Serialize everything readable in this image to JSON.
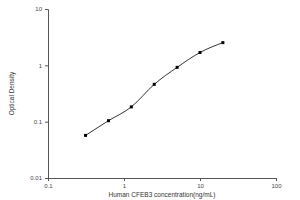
{
  "chart_data": {
    "type": "line",
    "x_label": "Human CFEB3 concentration(ng/mL)",
    "y_label": "Optical Density",
    "x": [
      0.312,
      0.625,
      1.25,
      2.5,
      5,
      10,
      20
    ],
    "values": [
      0.057,
      0.104,
      0.183,
      0.46,
      0.92,
      1.69,
      2.53
    ],
    "color": "#000000",
    "marker": "square",
    "line_style": "solid",
    "log": true,
    "xlim": [
      0.1,
      100
    ],
    "xticks": [
      0.1,
      1,
      10,
      100
    ],
    "ylim": [
      0.01,
      10
    ],
    "yticks": [
      0.01,
      0.1,
      1,
      10
    ]
  }
}
